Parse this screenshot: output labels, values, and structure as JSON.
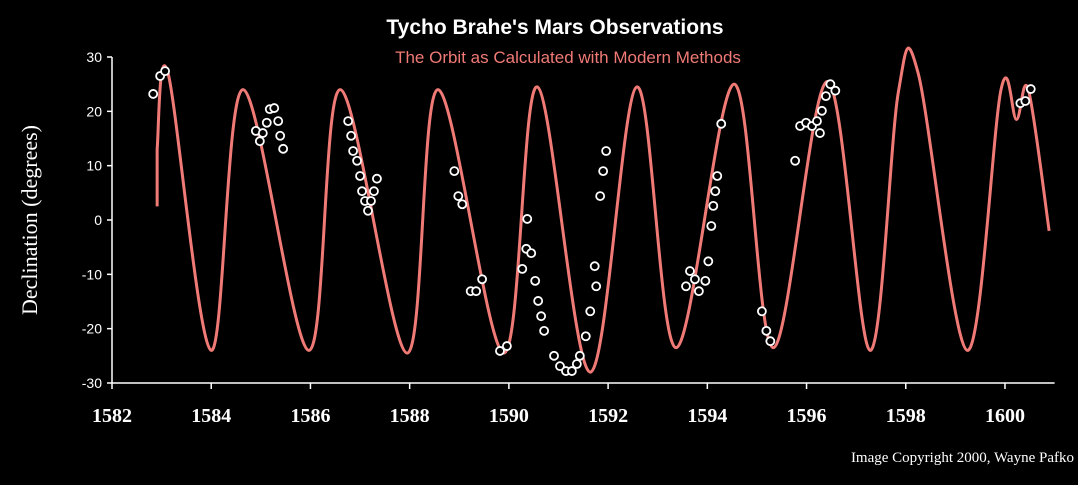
{
  "chart_data": {
    "type": "line",
    "title": "Tycho Brahe's Mars Observations",
    "subtitle": "The Orbit as Calculated with Modern Methods",
    "y_label": "Declination (degrees)",
    "copyright": "Image Copyright 2000, Wayne Pafko",
    "xlim": [
      1582,
      1601
    ],
    "ylim": [
      -30,
      30
    ],
    "xticks": [
      1582,
      1584,
      1586,
      1588,
      1590,
      1592,
      1594,
      1596,
      1598,
      1600
    ],
    "yticks": [
      -30,
      -20,
      -10,
      0,
      10,
      20,
      30
    ],
    "line": {
      "color": "#f07a76",
      "x": [
        1582.91,
        1582.91,
        1583.13,
        1584.0,
        1584.64,
        1585.97,
        1586.6,
        1587.95,
        1588.57,
        1589.9,
        1590.57,
        1591.64,
        1592.58,
        1593.37,
        1594.54,
        1595.33,
        1596.42,
        1597.28,
        1597.85,
        1598.25,
        1599.24,
        1599.92,
        1600.23,
        1600.47,
        1600.89
      ],
      "values": [
        2.5,
        13,
        27,
        -24,
        24,
        -24,
        24,
        -24.5,
        24,
        -24.5,
        24.5,
        -28,
        24.5,
        -23.5,
        25,
        -23.5,
        25.5,
        -24,
        23.5,
        27,
        -24,
        24,
        18.5,
        24,
        -2
      ]
    },
    "observations": {
      "color": "#ffffff",
      "x": [
        1582.83,
        1582.97,
        1583.07,
        1584.9,
        1584.98,
        1585.04,
        1585.12,
        1585.18,
        1585.27,
        1585.35,
        1585.39,
        1585.45,
        1586.76,
        1586.82,
        1586.86,
        1586.94,
        1587.0,
        1587.04,
        1587.1,
        1587.16,
        1587.22,
        1587.28,
        1587.34,
        1588.9,
        1588.98,
        1589.06,
        1589.23,
        1589.34,
        1589.46,
        1589.82,
        1589.96,
        1590.27,
        1590.37,
        1590.35,
        1590.45,
        1590.53,
        1590.59,
        1590.65,
        1590.71,
        1590.91,
        1591.03,
        1591.15,
        1591.27,
        1591.37,
        1591.43,
        1591.55,
        1591.64,
        1591.73,
        1591.84,
        1591.9,
        1591.96,
        1591.76,
        1593.57,
        1593.65,
        1593.75,
        1593.83,
        1593.96,
        1594.02,
        1594.08,
        1594.12,
        1594.16,
        1594.2,
        1594.28,
        1595.1,
        1595.19,
        1595.27,
        1595.77,
        1595.87,
        1595.99,
        1596.11,
        1596.21,
        1596.27,
        1596.31,
        1596.39,
        1596.48,
        1596.58,
        1600.31,
        1600.41,
        1600.52
      ],
      "values": [
        23.2,
        26.5,
        27.4,
        16.4,
        14.5,
        16,
        17.9,
        20.4,
        20.6,
        18.2,
        15.5,
        13.1,
        18.2,
        15.5,
        12.7,
        10.9,
        8.1,
        5.3,
        3.5,
        1.7,
        3.5,
        5.3,
        7.6,
        9,
        4.4,
        2.9,
        -13.1,
        -13.1,
        -10.9,
        -24.1,
        -23.2,
        -9,
        0.2,
        -5.3,
        -6.1,
        -11.2,
        -14.9,
        -17.7,
        -20.4,
        -25,
        -26.9,
        -27.8,
        -27.8,
        -26.5,
        -25,
        -21.4,
        -16.8,
        -8.5,
        4.4,
        9,
        12.7,
        -12.2,
        -12.2,
        -9.4,
        -10.9,
        -13.1,
        -11.2,
        -7.6,
        -1.1,
        2.6,
        5.3,
        8.1,
        17.7,
        -16.8,
        -20.4,
        -22.3,
        10.9,
        17.3,
        17.9,
        17.3,
        18.2,
        16,
        20.1,
        22.8,
        25,
        23.8,
        21.5,
        21.9,
        24.1
      ]
    }
  }
}
